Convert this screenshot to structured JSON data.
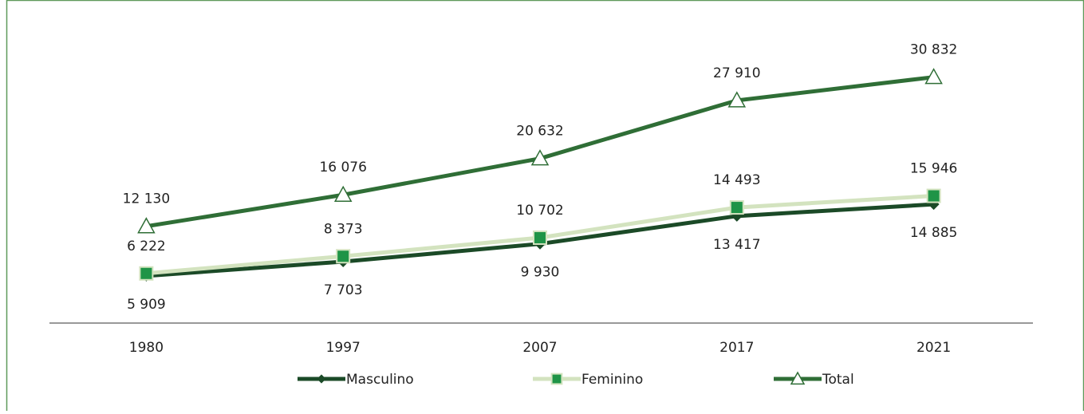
{
  "chart_data": {
    "type": "line",
    "categories": [
      "1980",
      "1997",
      "2007",
      "2017",
      "2021"
    ],
    "series": [
      {
        "name": "Masculino",
        "color": "#1b4a27",
        "marker": "diamond",
        "values": [
          5909,
          7703,
          9930,
          13417,
          14885
        ],
        "value_labels": [
          "5 909",
          "7 703",
          "9 930",
          "13 417",
          "14 885"
        ]
      },
      {
        "name": "Feminino",
        "color": "#d3e3bf",
        "marker": "square",
        "marker_color": "#1f9447",
        "values": [
          6222,
          8373,
          10702,
          14493,
          15946
        ],
        "value_labels": [
          "6 222",
          "8 373",
          "10 702",
          "14 493",
          "15 946"
        ]
      },
      {
        "name": "Total",
        "color": "#2f6e36",
        "marker": "triangle",
        "values": [
          12130,
          16076,
          20632,
          27910,
          30832
        ],
        "value_labels": [
          "12 130",
          "16 076",
          "20 632",
          "27 910",
          "30 832"
        ]
      }
    ],
    "ylim": [
      0,
      32000
    ],
    "legend": "bottom"
  }
}
